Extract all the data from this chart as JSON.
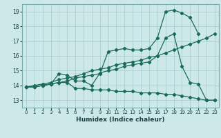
{
  "xlabel": "Humidex (Indice chaleur)",
  "xlim": [
    -0.5,
    23.5
  ],
  "ylim": [
    12.5,
    19.5
  ],
  "xticks": [
    0,
    1,
    2,
    3,
    4,
    5,
    6,
    7,
    8,
    9,
    10,
    11,
    12,
    13,
    14,
    15,
    16,
    17,
    18,
    19,
    20,
    21,
    22,
    23
  ],
  "yticks": [
    13,
    14,
    15,
    16,
    17,
    18,
    19
  ],
  "background_color": "#cce8e8",
  "grid_color": "#aacfcf",
  "line_color": "#1a6b5a",
  "line1_x": [
    0,
    1,
    2,
    3,
    4,
    5,
    6,
    7,
    8,
    9,
    10,
    11,
    12,
    13,
    14,
    15,
    16,
    17,
    18,
    19,
    20,
    21
  ],
  "line1_y": [
    13.9,
    13.9,
    14.0,
    14.1,
    14.2,
    14.3,
    14.5,
    14.6,
    14.7,
    14.8,
    16.3,
    16.4,
    16.5,
    16.4,
    16.4,
    16.5,
    17.2,
    19.0,
    19.1,
    18.9,
    18.6,
    17.5
  ],
  "line2_x": [
    0,
    1,
    2,
    3,
    4,
    5,
    6,
    7,
    8,
    9,
    10,
    11,
    12,
    13,
    14,
    15,
    16,
    17,
    18,
    19,
    20,
    21,
    22,
    23
  ],
  "line2_y": [
    13.9,
    14.0,
    14.1,
    14.2,
    14.4,
    14.5,
    14.6,
    14.8,
    15.0,
    15.1,
    15.2,
    15.4,
    15.5,
    15.6,
    15.7,
    15.9,
    16.0,
    16.2,
    16.4,
    16.6,
    16.8,
    17.0,
    17.2,
    17.5
  ],
  "line3_x": [
    0,
    1,
    2,
    3,
    4,
    5,
    6,
    7,
    8,
    9,
    10,
    11,
    12,
    13,
    14,
    15,
    16,
    17,
    18,
    19,
    20,
    21,
    22,
    23
  ],
  "line3_y": [
    13.9,
    13.9,
    14.0,
    14.1,
    14.8,
    14.7,
    14.3,
    14.3,
    14.0,
    14.85,
    15.0,
    15.1,
    15.3,
    15.4,
    15.5,
    15.6,
    16.0,
    17.2,
    17.5,
    15.3,
    14.2,
    14.1,
    13.0,
    13.0
  ],
  "line4_x": [
    0,
    1,
    2,
    3,
    4,
    5,
    6,
    7,
    8,
    9,
    10,
    11,
    12,
    13,
    14,
    15,
    16,
    17,
    18,
    19,
    20,
    21,
    22,
    23
  ],
  "line4_y": [
    13.9,
    13.9,
    14.0,
    14.1,
    14.2,
    14.2,
    13.8,
    13.8,
    13.7,
    13.7,
    13.7,
    13.6,
    13.6,
    13.6,
    13.5,
    13.5,
    13.5,
    13.4,
    13.4,
    13.3,
    13.2,
    13.1,
    13.0,
    13.0
  ]
}
